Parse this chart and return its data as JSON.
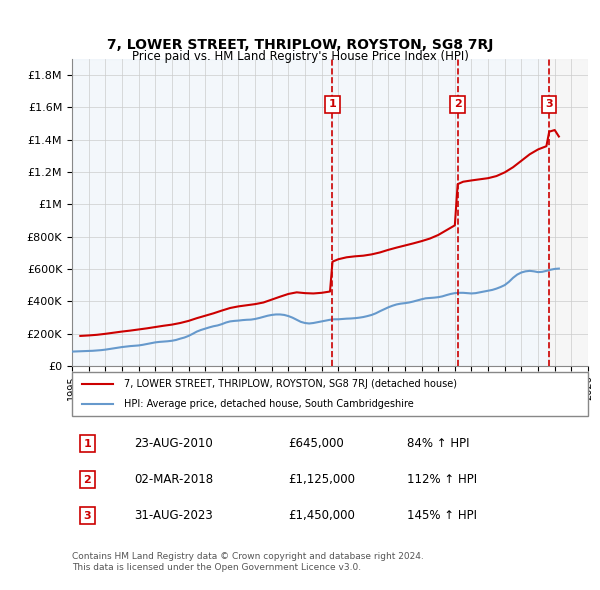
{
  "title": "7, LOWER STREET, THRIPLOW, ROYSTON, SG8 7RJ",
  "subtitle": "Price paid vs. HM Land Registry's House Price Index (HPI)",
  "legend_line1": "7, LOWER STREET, THRIPLOW, ROYSTON, SG8 7RJ (detached house)",
  "legend_line2": "HPI: Average price, detached house, South Cambridgeshire",
  "footer1": "Contains HM Land Registry data © Crown copyright and database right 2024.",
  "footer2": "This data is licensed under the Open Government Licence v3.0.",
  "sale_markers": [
    {
      "num": 1,
      "date": "23-AUG-2010",
      "price": "£645,000",
      "hpi": "84% ↑ HPI",
      "year": 2010.65
    },
    {
      "num": 2,
      "date": "02-MAR-2018",
      "price": "£1,125,000",
      "hpi": "112% ↑ HPI",
      "year": 2018.17
    },
    {
      "num": 3,
      "date": "31-AUG-2023",
      "price": "£1,450,000",
      "hpi": "145% ↑ HPI",
      "year": 2023.67
    }
  ],
  "sale_values": [
    645000,
    1125000,
    1450000
  ],
  "hpi_line_color": "#6699cc",
  "price_line_color": "#cc0000",
  "marker_box_color": "#cc0000",
  "shade_colors": [
    "#ddeeff",
    "#ddeeff",
    "#f0f0f8"
  ],
  "xlim": [
    1995,
    2026
  ],
  "ylim": [
    0,
    1900000
  ],
  "yticks": [
    0,
    200000,
    400000,
    600000,
    800000,
    1000000,
    1200000,
    1400000,
    1600000,
    1800000
  ],
  "ytick_labels": [
    "£0",
    "£200K",
    "£400K",
    "£600K",
    "£800K",
    "£1M",
    "£1.2M",
    "£1.4M",
    "£1.6M",
    "£1.8M"
  ],
  "hpi_data_x": [
    1995,
    1995.25,
    1995.5,
    1995.75,
    1996,
    1996.25,
    1996.5,
    1996.75,
    1997,
    1997.25,
    1997.5,
    1997.75,
    1998,
    1998.25,
    1998.5,
    1998.75,
    1999,
    1999.25,
    1999.5,
    1999.75,
    2000,
    2000.25,
    2000.5,
    2000.75,
    2001,
    2001.25,
    2001.5,
    2001.75,
    2002,
    2002.25,
    2002.5,
    2002.75,
    2003,
    2003.25,
    2003.5,
    2003.75,
    2004,
    2004.25,
    2004.5,
    2004.75,
    2005,
    2005.25,
    2005.5,
    2005.75,
    2006,
    2006.25,
    2006.5,
    2006.75,
    2007,
    2007.25,
    2007.5,
    2007.75,
    2008,
    2008.25,
    2008.5,
    2008.75,
    2009,
    2009.25,
    2009.5,
    2009.75,
    2010,
    2010.25,
    2010.5,
    2010.75,
    2011,
    2011.25,
    2011.5,
    2011.75,
    2012,
    2012.25,
    2012.5,
    2012.75,
    2013,
    2013.25,
    2013.5,
    2013.75,
    2014,
    2014.25,
    2014.5,
    2014.75,
    2015,
    2015.25,
    2015.5,
    2015.75,
    2016,
    2016.25,
    2016.5,
    2016.75,
    2017,
    2017.25,
    2017.5,
    2017.75,
    2018,
    2018.25,
    2018.5,
    2018.75,
    2019,
    2019.25,
    2019.5,
    2019.75,
    2020,
    2020.25,
    2020.5,
    2020.75,
    2021,
    2021.25,
    2021.5,
    2021.75,
    2022,
    2022.25,
    2022.5,
    2022.75,
    2023,
    2023.25,
    2023.5,
    2023.75,
    2024,
    2024.25
  ],
  "hpi_data_y": [
    88000,
    89000,
    90000,
    91000,
    92000,
    93000,
    95000,
    97000,
    100000,
    104000,
    108000,
    112000,
    116000,
    119000,
    122000,
    124000,
    126000,
    130000,
    135000,
    140000,
    145000,
    148000,
    150000,
    152000,
    155000,
    160000,
    168000,
    175000,
    185000,
    198000,
    212000,
    222000,
    230000,
    238000,
    245000,
    250000,
    258000,
    268000,
    275000,
    278000,
    280000,
    283000,
    285000,
    286000,
    290000,
    296000,
    303000,
    310000,
    315000,
    318000,
    318000,
    315000,
    308000,
    298000,
    285000,
    272000,
    265000,
    262000,
    265000,
    270000,
    275000,
    280000,
    285000,
    288000,
    288000,
    290000,
    292000,
    293000,
    295000,
    298000,
    302000,
    308000,
    315000,
    325000,
    338000,
    350000,
    362000,
    372000,
    380000,
    385000,
    388000,
    392000,
    398000,
    405000,
    412000,
    418000,
    420000,
    422000,
    425000,
    430000,
    438000,
    445000,
    450000,
    452000,
    452000,
    450000,
    448000,
    450000,
    455000,
    460000,
    465000,
    470000,
    478000,
    488000,
    500000,
    520000,
    545000,
    565000,
    578000,
    585000,
    588000,
    585000,
    580000,
    582000,
    588000,
    595000,
    600000,
    602000
  ],
  "price_data_x": [
    1995.5,
    1996,
    1996.5,
    1997,
    1997.5,
    1998,
    1998.5,
    1999,
    1999.5,
    2000,
    2000.5,
    2001,
    2001.5,
    2002,
    2002.5,
    2003,
    2003.5,
    2004,
    2004.5,
    2005,
    2005.5,
    2006,
    2006.5,
    2007,
    2007.5,
    2008,
    2008.5,
    2009,
    2009.5,
    2010,
    2010.5,
    2010.65,
    2011,
    2011.5,
    2012,
    2012.5,
    2013,
    2013.5,
    2014,
    2014.5,
    2015,
    2015.5,
    2016,
    2016.5,
    2017,
    2017.5,
    2018,
    2018.17,
    2018.5,
    2019,
    2019.5,
    2020,
    2020.5,
    2021,
    2021.5,
    2022,
    2022.5,
    2023,
    2023.5,
    2023.67,
    2024,
    2024.25
  ],
  "price_data_y": [
    185000,
    188000,
    192000,
    198000,
    205000,
    212000,
    218000,
    225000,
    232000,
    240000,
    248000,
    255000,
    265000,
    278000,
    295000,
    310000,
    325000,
    342000,
    358000,
    368000,
    375000,
    382000,
    392000,
    410000,
    428000,
    445000,
    455000,
    450000,
    448000,
    452000,
    460000,
    645000,
    660000,
    672000,
    678000,
    682000,
    690000,
    702000,
    718000,
    732000,
    745000,
    758000,
    772000,
    788000,
    810000,
    840000,
    870000,
    1125000,
    1140000,
    1148000,
    1155000,
    1162000,
    1175000,
    1198000,
    1230000,
    1270000,
    1310000,
    1340000,
    1360000,
    1450000,
    1460000,
    1420000
  ]
}
